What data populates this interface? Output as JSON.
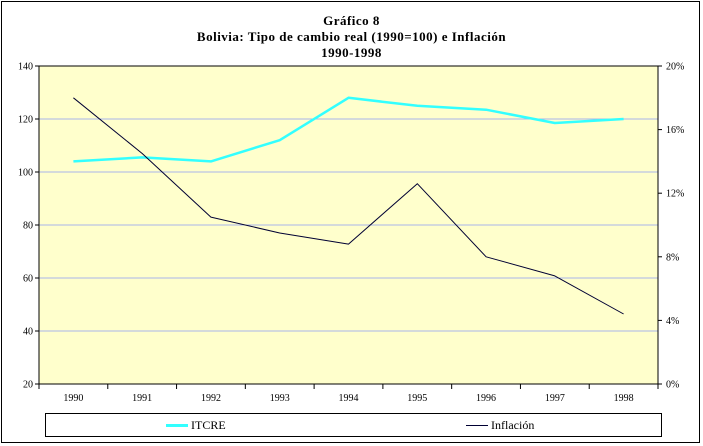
{
  "chart_data": {
    "type": "line",
    "title": "Gráfico 8",
    "subtitle": "Bolivia: Tipo de cambio real (1990=100) e Inflación",
    "period": "1990-1998",
    "categories": [
      "1990",
      "1991",
      "1992",
      "1993",
      "1994",
      "1995",
      "1996",
      "1997",
      "1998"
    ],
    "series": [
      {
        "name": "ITCRE",
        "axis": "left",
        "color": "#33ffff",
        "values": [
          104,
          105.5,
          104,
          112,
          128,
          125,
          123.5,
          118.5,
          120
        ]
      },
      {
        "name": "Inflación",
        "axis": "right",
        "color": "#000033",
        "values": [
          0.18,
          0.145,
          0.105,
          0.095,
          0.088,
          0.126,
          0.08,
          0.068,
          0.044
        ]
      }
    ],
    "ylim_left": [
      20,
      140
    ],
    "yticks_left": [
      20,
      40,
      60,
      80,
      100,
      120,
      140
    ],
    "ylim_right": [
      0,
      0.2
    ],
    "yticks_right": [
      0,
      0.04,
      0.08,
      0.12,
      0.16,
      0.2
    ],
    "ytick_labels_right": [
      "0%",
      "4%",
      "8%",
      "12%",
      "16%",
      "20%"
    ],
    "plot_background": "#ffffcc",
    "grid_color": "#a9b5ea",
    "grid": true,
    "legend_position": "bottom"
  }
}
